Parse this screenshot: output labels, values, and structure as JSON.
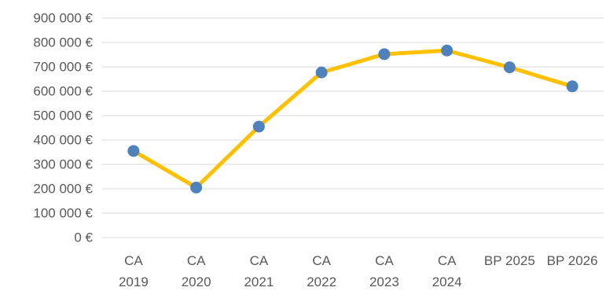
{
  "chart_data": {
    "type": "line",
    "categories": [
      [
        "CA",
        "2019"
      ],
      [
        "CA",
        "2020"
      ],
      [
        "CA",
        "2021"
      ],
      [
        "CA",
        "2022"
      ],
      [
        "CA",
        "2023"
      ],
      [
        "CA",
        "2024"
      ],
      [
        "BP 2025"
      ],
      [
        "BP 2026"
      ]
    ],
    "series": [
      {
        "values": [
          355000,
          205000,
          455000,
          677000,
          752000,
          767000,
          698000,
          620000
        ],
        "line_color": "#FFC000",
        "marker_color": "#4F81BD"
      }
    ],
    "ylim": [
      0,
      900000
    ],
    "y_ticks": [
      0,
      100000,
      200000,
      300000,
      400000,
      500000,
      600000,
      700000,
      800000,
      900000
    ],
    "y_tick_labels": [
      "0 €",
      "100 000 €",
      "200 000 €",
      "300 000 €",
      "400 000 €",
      "500 000 €",
      "600 000 €",
      "700 000 €",
      "800 000 €",
      "900 000 €"
    ],
    "grid": true,
    "legend": "none",
    "title": "",
    "xlabel": "",
    "ylabel": ""
  }
}
